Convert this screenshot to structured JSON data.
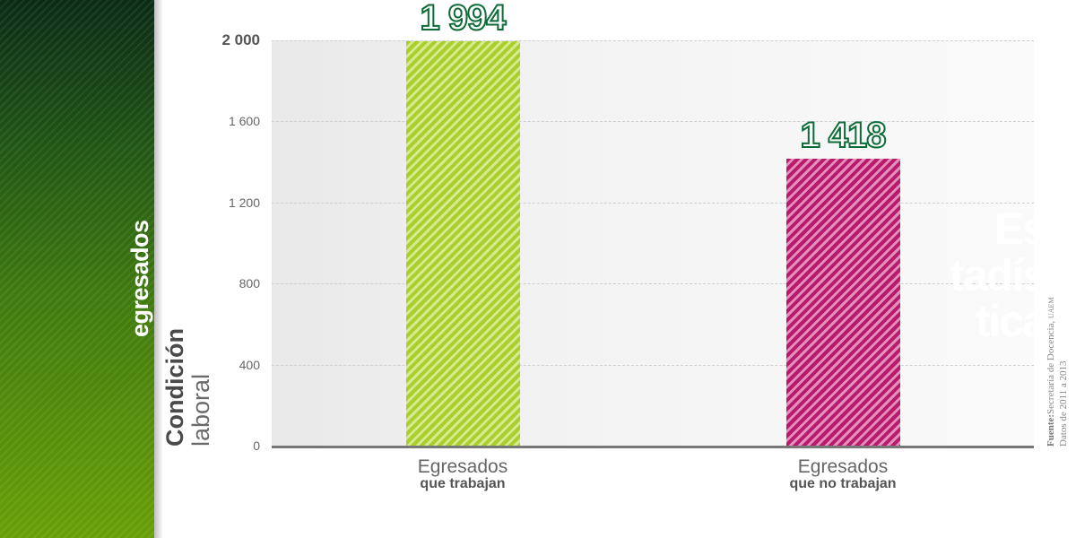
{
  "brand": {
    "line1": "Es",
    "line2": "tadís",
    "line3": "tica",
    "subtitle": "egresados",
    "color": "#3f7a0f"
  },
  "axis_title": {
    "line1": "Condición",
    "line2": "laboral"
  },
  "source": {
    "label": "Fuente:",
    "text": "Secretaría de Docencia,",
    "org": "UAEM",
    "line2": "Datos de 2011 a 2013"
  },
  "chart_data": {
    "type": "bar",
    "title": "",
    "categories": [
      "Egresados que trabajan",
      "Egresados que no trabajan"
    ],
    "category_labels": [
      {
        "line1": "Egresados",
        "line2": "que trabajan"
      },
      {
        "line1": "Egresados",
        "line2": "que no trabajan"
      }
    ],
    "values": [
      1994,
      1418
    ],
    "value_labels": [
      "1 994",
      "1 418"
    ],
    "colors": [
      "#a9cf2c",
      "#b81a6e"
    ],
    "ylim": [
      0,
      2000
    ],
    "yticks": [
      0,
      400,
      800,
      1200,
      1600,
      2000
    ],
    "ytick_labels": [
      "0",
      "400",
      "800",
      "1 200",
      "1 600",
      "2 000"
    ],
    "grid": true,
    "legend": "none"
  }
}
